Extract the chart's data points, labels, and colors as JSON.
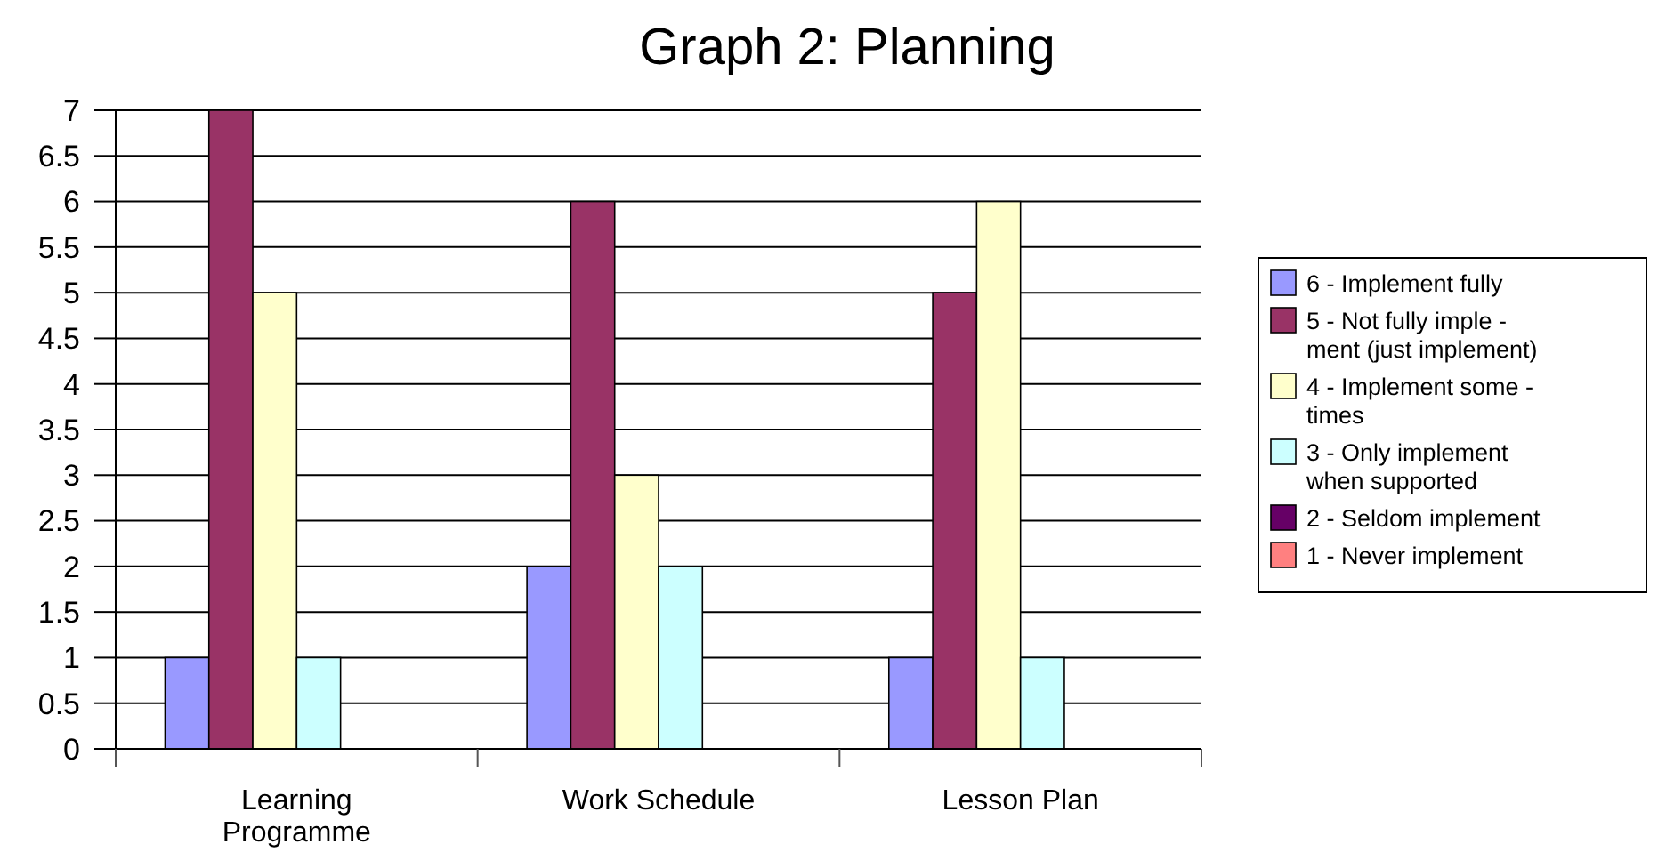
{
  "chart_data": {
    "type": "bar",
    "title": "Graph 2: Planning",
    "categories": [
      "Learning Programme",
      "Work Schedule",
      "Lesson Plan"
    ],
    "series": [
      {
        "name": "6 - Implement fully",
        "color": "#9999ff",
        "values": [
          1,
          2,
          1
        ]
      },
      {
        "name": "5 - Not fully imple - ment (just implement)",
        "color": "#993366",
        "values": [
          7,
          6,
          5
        ]
      },
      {
        "name": "4 - Implement some - times",
        "color": "#ffffcc",
        "values": [
          5,
          3,
          6
        ]
      },
      {
        "name": "3 - Only implement when supported",
        "color": "#ccffff",
        "values": [
          1,
          2,
          1
        ]
      },
      {
        "name": "2 - Seldom implement",
        "color": "#660066",
        "values": [
          0,
          0,
          0
        ]
      },
      {
        "name": "1 - Never implement",
        "color": "#ff8080",
        "values": [
          0,
          0,
          0
        ]
      }
    ],
    "ylim": [
      0,
      7
    ],
    "yticks": [
      0,
      0.5,
      1,
      1.5,
      2,
      2.5,
      3,
      3.5,
      4,
      4.5,
      5,
      5.5,
      6,
      6.5,
      7
    ],
    "grid": "y",
    "legend": "right"
  }
}
